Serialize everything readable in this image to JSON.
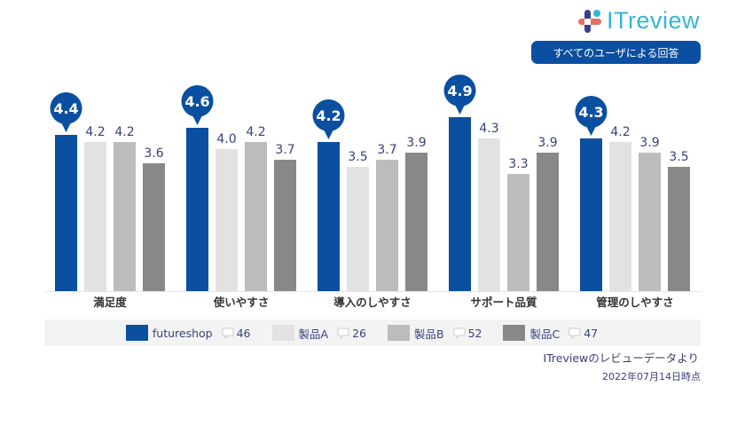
{
  "header": {
    "logo_text": "ITreview",
    "badge": "すべてのユーザによる回答"
  },
  "colors": {
    "futureshop": "#0a4fa0",
    "A": "#e2e2e2",
    "B": "#bcbcbc",
    "C": "#888888"
  },
  "chart_data": {
    "type": "bar",
    "categories": [
      "満足度",
      "使いやすさ",
      "導入のしやすさ",
      "サポート品質",
      "管理のしやすさ"
    ],
    "series": [
      {
        "name": "futureshop",
        "values": [
          4.4,
          4.6,
          4.2,
          4.9,
          4.3
        ],
        "reviews": "46"
      },
      {
        "name": "製品A",
        "values": [
          4.2,
          4.0,
          3.5,
          4.3,
          4.2
        ],
        "reviews": "26"
      },
      {
        "name": "製品B",
        "values": [
          4.2,
          4.2,
          3.7,
          3.3,
          3.9
        ],
        "reviews": "52"
      },
      {
        "name": "製品C",
        "values": [
          3.6,
          3.7,
          3.9,
          3.9,
          3.5
        ],
        "reviews": "47"
      }
    ],
    "ylim": [
      0,
      5
    ],
    "grid": false,
    "legend": "bottom"
  },
  "footer": {
    "source": "ITreviewのレビューデータより",
    "date": "2022年07月14日時点"
  }
}
